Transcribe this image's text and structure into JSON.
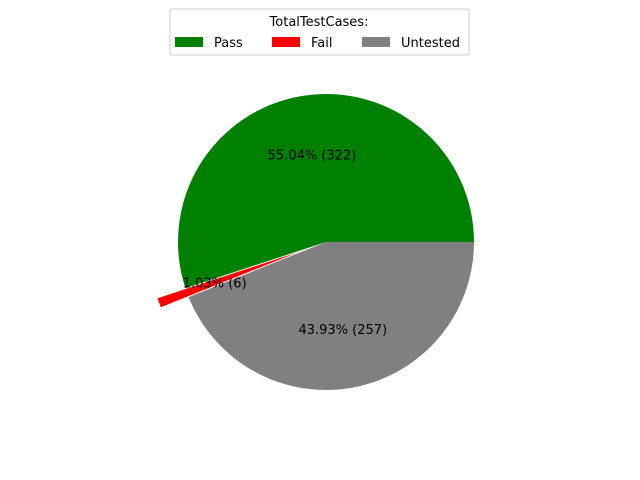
{
  "chart_data": {
    "type": "pie",
    "legend": {
      "title": "TotalTestCases:",
      "placement": "top-center",
      "columns": 3
    },
    "series": [
      {
        "slices": [
          {
            "label": "Pass",
            "value": 322,
            "percent_label": "55.04%  (322)",
            "color": "#008000",
            "exploded": false
          },
          {
            "label": "Fail",
            "value": 6,
            "percent_label": "1.03%  (6)",
            "color": "#ff0000",
            "exploded": true
          },
          {
            "label": "Untested",
            "value": 257,
            "percent_label": "43.93%  (257)",
            "color": "#808080",
            "exploded": false
          }
        ]
      }
    ]
  }
}
